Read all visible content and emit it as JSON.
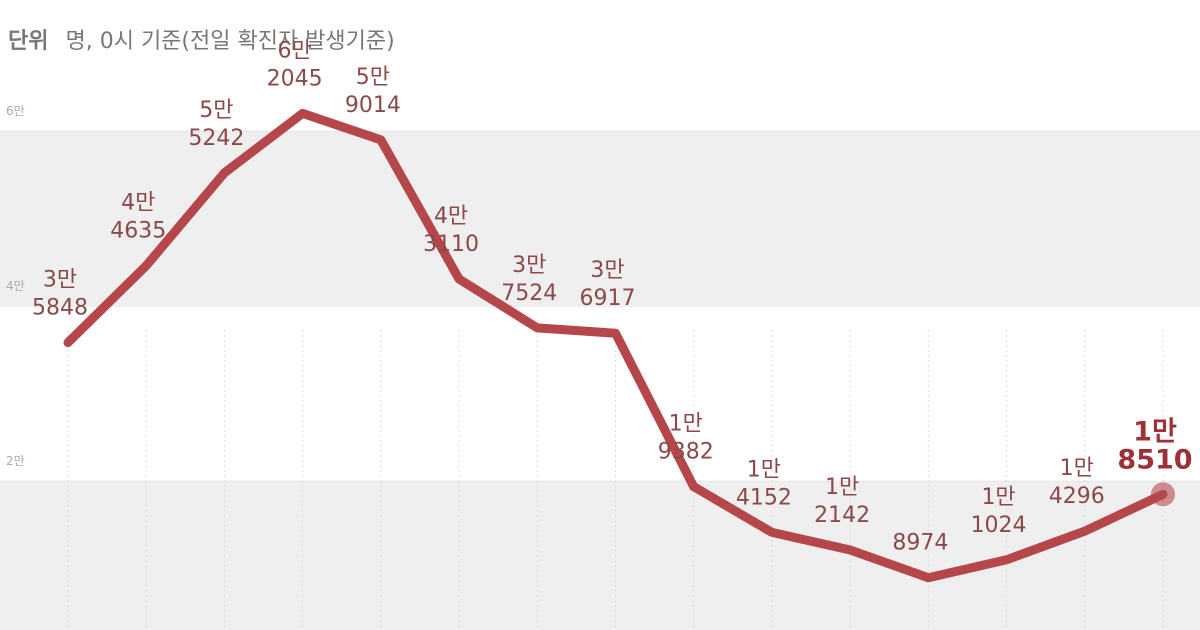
{
  "chart_data": {
    "type": "line",
    "subtitle": [
      "단위",
      "명, 0시 기준(전일 확진자 발생기준)"
    ],
    "categories": [
      null,
      null,
      null,
      null,
      null,
      null,
      null,
      null,
      null,
      null,
      null,
      null,
      null,
      null,
      null
    ],
    "series": [
      {
        "color": "#b5474b",
        "values": [
          35848,
          44635,
          55242,
          62045,
          59014,
          43110,
          37524,
          36917,
          19382,
          14152,
          12142,
          8974,
          11024,
          14296,
          18510
        ],
        "value_labels": [
          [
            "3만",
            "5848"
          ],
          [
            "4만",
            "4635"
          ],
          [
            "5만",
            "5242"
          ],
          [
            "6만",
            "2045"
          ],
          [
            "5만",
            "9014"
          ],
          [
            "4만",
            "3110"
          ],
          [
            "3만",
            "7524"
          ],
          [
            "3만",
            "6917"
          ],
          [
            "1만",
            "9382"
          ],
          [
            "1만",
            "4152"
          ],
          [
            "1만",
            "2142"
          ],
          [
            "8974"
          ],
          [
            "1만",
            "1024"
          ],
          [
            "1만",
            "4296"
          ],
          [
            "1만",
            "8510"
          ]
        ]
      }
    ],
    "ylim": [
      3000,
      75000
    ],
    "yticks": [
      {
        "value": 20000,
        "label": "2만"
      },
      {
        "value": 40000,
        "label": "4만"
      },
      {
        "value": 60000,
        "label": "6만"
      }
    ],
    "grid": true
  }
}
